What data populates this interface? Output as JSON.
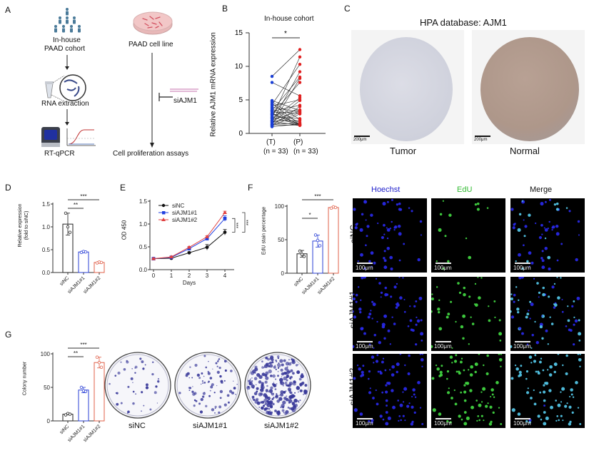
{
  "panels": {
    "A": {
      "letter": "A",
      "left_flow": {
        "cohort_label_line1": "In-house",
        "cohort_label_line2": "PAAD cohort",
        "rna_label": "RNA extraction",
        "pcr_label": "RT-qPCR"
      },
      "right_flow": {
        "cell_line_label": "PAAD cell line",
        "sirna_label": "siAJM1",
        "assay_label": "Cell proliferation assays"
      }
    },
    "B": {
      "letter": "B",
      "title": "In-house cohort",
      "ylabel": "Relative AJM1 mRNA expression",
      "significance": "*",
      "group1_label": "(T)",
      "group2_label": "(P)",
      "group1_n": "(n = 33)",
      "group2_n": "(n = 33)",
      "yticks": [
        "0",
        "5",
        "10",
        "15"
      ]
    },
    "C": {
      "letter": "C",
      "title": "HPA database: AJM1",
      "scale_left": "200μm",
      "scale_right": "200μm",
      "caption_left": "Tumor",
      "caption_right": "Normal"
    },
    "D": {
      "letter": "D",
      "ylabel_line1": "Relative expression",
      "ylabel_line2": "(fold to siNC)",
      "yticks": [
        "0.0",
        "0.5",
        "1.0",
        "1.5"
      ],
      "xlabels": [
        "siNC",
        "siAJM1#1",
        "siAJM1#2"
      ],
      "sig1": "**",
      "sig2": "***"
    },
    "E": {
      "letter": "E",
      "ylabel": "OD 450",
      "xlabel": "Days",
      "yticks": [
        "0.0",
        "0.5",
        "1.0",
        "1.5"
      ],
      "xticks": [
        "0",
        "1",
        "2",
        "3",
        "4"
      ],
      "legend": [
        "siNC",
        "siAJM1#1",
        "siAJM1#2"
      ],
      "sig1": "***",
      "sig2": "***"
    },
    "F": {
      "letter": "F",
      "ylabel": "EdU stain percentage",
      "yticks": [
        "0",
        "50",
        "100"
      ],
      "xlabels": [
        "siNC",
        "siAJM1#1",
        "siAJM1#2"
      ],
      "sig1": "*",
      "sig2": "***",
      "micrograph_columns": [
        "Hoechst",
        "EdU",
        "Merge"
      ],
      "micrograph_rows": [
        "siNC",
        "siAJM1#1",
        "siAJM1#2"
      ],
      "scale": "100μm",
      "colors": {
        "hoechst": "#2222cc",
        "edu": "#33cc33",
        "merge": "#111111"
      }
    },
    "G": {
      "letter": "G",
      "ylabel": "Colony number",
      "yticks": [
        "0",
        "50",
        "100"
      ],
      "xlabels": [
        "siNC",
        "siAJM1#1",
        "siAJM1#2"
      ],
      "sig1": "**",
      "sig2": "***",
      "plate_labels": [
        "siNC",
        "siAJM1#1",
        "siAJM1#2"
      ]
    }
  },
  "chart_data": [
    {
      "panel": "B",
      "type": "scatter",
      "title": "In-house cohort",
      "xlabel": "",
      "ylabel": "Relative AJM1 mRNA expression",
      "categories": [
        "(T) (n = 33)",
        "(P) (n = 33)"
      ],
      "ylim": [
        0,
        15
      ],
      "paired": true,
      "series": [
        {
          "name": "(T)",
          "color": "#1a3fd6",
          "values": [
            8.5,
            7.6,
            4.9,
            4.7,
            4.5,
            4.3,
            4.1,
            3.9,
            3.7,
            3.5,
            3.4,
            3.3,
            3.2,
            3.0,
            2.9,
            2.8,
            2.7,
            2.5,
            2.4,
            2.3,
            2.2,
            2.0,
            1.9,
            1.8,
            1.7,
            1.6,
            1.5,
            1.4,
            1.3,
            1.3,
            1.2,
            1.1,
            1.0
          ]
        },
        {
          "name": "(P)",
          "color": "#e02020",
          "values": [
            12.5,
            11.4,
            10.3,
            9.2,
            8.4,
            8.2,
            7.6,
            5.6,
            5.3,
            5.0,
            4.9,
            4.2,
            4.0,
            3.5,
            3.4,
            3.3,
            3.2,
            3.1,
            3.0,
            2.9,
            2.2,
            2.1,
            1.9,
            1.6,
            1.5,
            1.4,
            1.4,
            1.3,
            1.3,
            1.2,
            1.2,
            1.2,
            1.2
          ]
        }
      ],
      "annotations": [
        "*"
      ]
    },
    {
      "panel": "D",
      "type": "bar",
      "title": "",
      "xlabel": "",
      "ylabel": "Relative expression (fold to siNC)",
      "categories": [
        "siNC",
        "siAJM1#1",
        "siAJM1#2"
      ],
      "values": [
        1.06,
        0.45,
        0.22
      ],
      "errors": [
        0.24,
        0.02,
        0.02
      ],
      "points": [
        [
          1.3,
          1.0,
          0.88
        ],
        [
          0.44,
          0.46,
          0.45
        ],
        [
          0.21,
          0.23,
          0.22
        ]
      ],
      "colors": [
        "#222222",
        "#2a3fd6",
        "#e0604a"
      ],
      "ylim": [
        0,
        1.5
      ],
      "annotations": [
        "**",
        "***"
      ]
    },
    {
      "panel": "E",
      "type": "line",
      "title": "",
      "xlabel": "Days",
      "ylabel": "OD 450",
      "x": [
        0,
        1,
        2,
        3,
        4
      ],
      "ylim": [
        0,
        1.5
      ],
      "series": [
        {
          "name": "siNC",
          "color": "#111111",
          "marker": "circle",
          "values": [
            0.24,
            0.25,
            0.37,
            0.49,
            0.82
          ],
          "errors": [
            0.01,
            0.01,
            0.02,
            0.06,
            0.06
          ]
        },
        {
          "name": "siAJM1#1",
          "color": "#1f3fe0",
          "marker": "square",
          "values": [
            0.24,
            0.27,
            0.46,
            0.68,
            1.12
          ],
          "errors": [
            0.01,
            0.01,
            0.02,
            0.02,
            0.06
          ]
        },
        {
          "name": "siAJM1#2",
          "color": "#e04040",
          "marker": "triangle",
          "values": [
            0.24,
            0.28,
            0.49,
            0.72,
            1.25
          ],
          "errors": [
            0.01,
            0.01,
            0.02,
            0.02,
            0.03
          ]
        }
      ],
      "legend_position": "top-left",
      "annotations": [
        "***",
        "***"
      ]
    },
    {
      "panel": "F",
      "type": "bar",
      "title": "",
      "xlabel": "",
      "ylabel": "EdU stain percentage",
      "categories": [
        "siNC",
        "siAJM1#1",
        "siAJM1#2"
      ],
      "values": [
        29,
        48,
        98
      ],
      "errors": [
        5,
        9,
        1
      ],
      "points": [
        [
          33,
          28,
          25
        ],
        [
          57,
          49,
          41
        ],
        [
          97,
          99,
          98
        ]
      ],
      "colors": [
        "#222222",
        "#2a3fd6",
        "#e0604a"
      ],
      "ylim": [
        0,
        100
      ],
      "annotations": [
        "*",
        "***"
      ]
    },
    {
      "panel": "G",
      "type": "bar",
      "title": "",
      "xlabel": "",
      "ylabel": "Colony number",
      "categories": [
        "siNC",
        "siAJM1#1",
        "siAJM1#2"
      ],
      "values": [
        10,
        46,
        87
      ],
      "errors": [
        1,
        4,
        8
      ],
      "points": [
        [
          9,
          11,
          10
        ],
        [
          50,
          45,
          44
        ],
        [
          95,
          87,
          80
        ]
      ],
      "colors": [
        "#222222",
        "#2a3fd6",
        "#e0604a"
      ],
      "ylim": [
        0,
        100
      ],
      "annotations": [
        "**",
        "***"
      ]
    }
  ]
}
